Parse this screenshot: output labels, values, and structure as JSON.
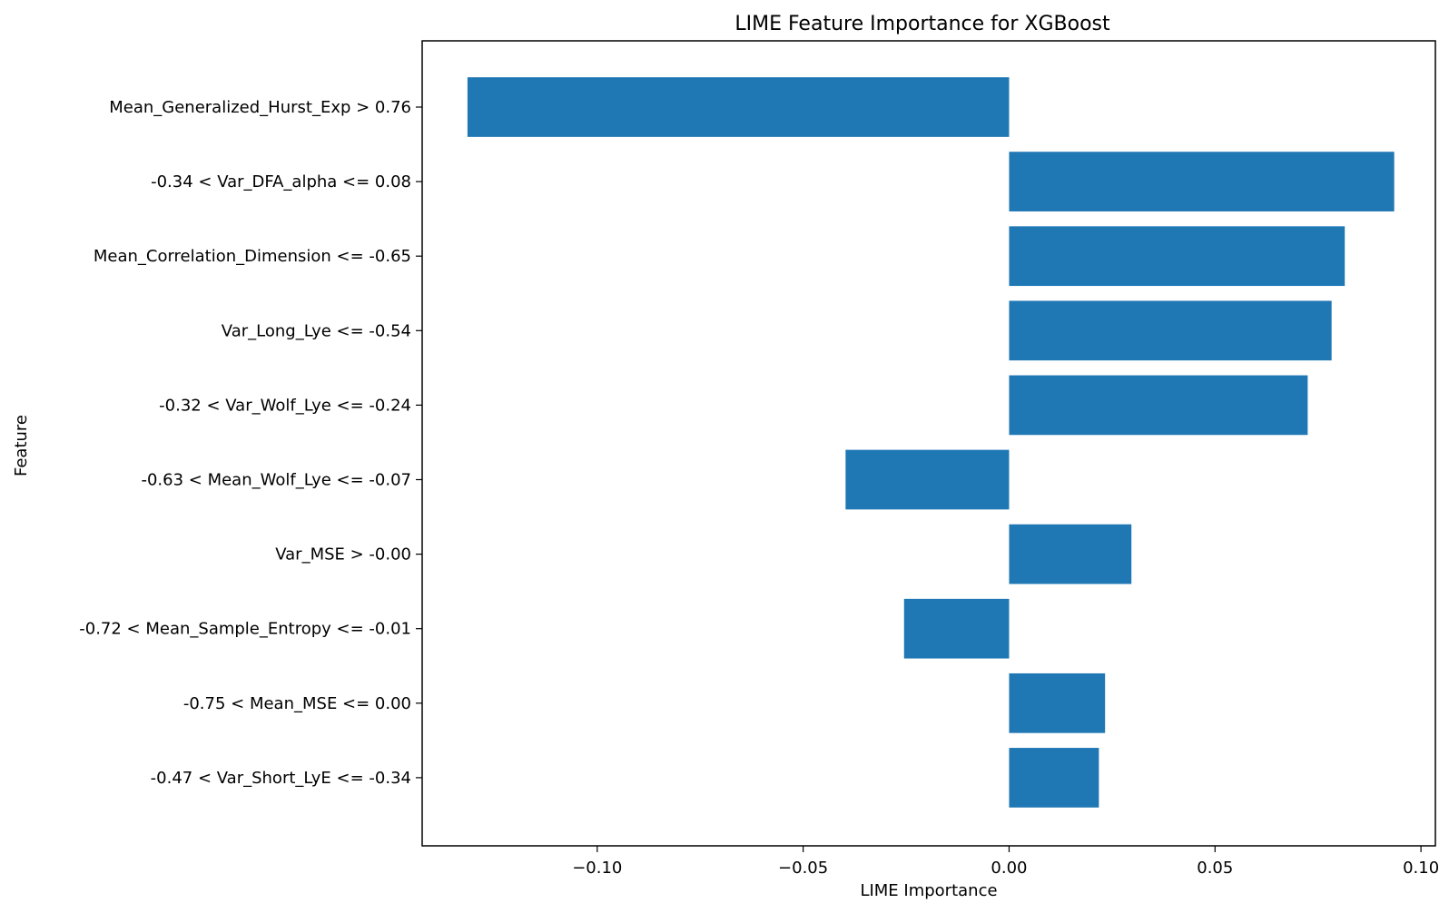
{
  "chart_data": {
    "type": "bar",
    "orientation": "horizontal",
    "title": "LIME Feature Importance for XGBoost",
    "xlabel": "LIME Importance",
    "ylabel": "Feature",
    "bar_color": "#1f77b4",
    "xlim": [
      -0.1425,
      0.1035
    ],
    "xticks": [
      -0.1,
      -0.05,
      0.0,
      0.05,
      0.1
    ],
    "xtick_labels": [
      "−0.10",
      "−0.05",
      "0.00",
      "0.05",
      "0.10"
    ],
    "grid": false,
    "categories": [
      "Mean_Generalized_Hurst_Exp > 0.76",
      "-0.34 < Var_DFA_alpha <= 0.08",
      "Mean_Correlation_Dimension <= -0.65",
      "Var_Long_Lye <= -0.54",
      "-0.32 < Var_Wolf_Lye <= -0.24",
      "-0.63 < Mean_Wolf_Lye <= -0.07",
      "Var_MSE > -0.00",
      "-0.72 < Mean_Sample_Entropy <= -0.01",
      "-0.75 < Mean_MSE <= 0.00",
      "-0.47 < Var_Short_LyE <= -0.34"
    ],
    "values": [
      -0.1315,
      0.0935,
      0.0815,
      0.0783,
      0.0725,
      -0.0397,
      0.0297,
      -0.0255,
      0.0233,
      0.0218
    ]
  }
}
